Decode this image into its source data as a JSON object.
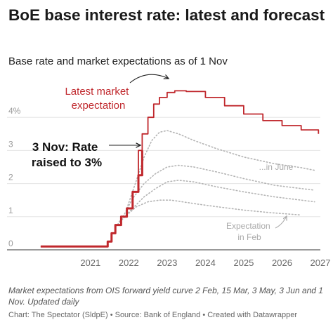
{
  "chart_data": {
    "type": "line",
    "title": "BoE base interest rate: latest and forecast",
    "subtitle": "Base rate and market expectations as of 1 Nov",
    "xlim": [
      2020.0,
      2027.5
    ],
    "ylim": [
      0,
      5
    ],
    "x_ticks": [
      "2021",
      "2022",
      "2023",
      "2024",
      "2025",
      "2026",
      "2027"
    ],
    "y_ticks": [
      "0",
      "1",
      "2",
      "3",
      "4%"
    ],
    "grid": "horizontal",
    "series": [
      {
        "name": "Latest market expectation",
        "color": "#c0282d",
        "x": [
          2020.2,
          2021.95,
          2022.05,
          2022.15,
          2022.3,
          2022.45,
          2022.6,
          2022.75,
          2022.85,
          2023.0,
          2023.15,
          2023.3,
          2023.5,
          2023.7,
          2024.0,
          2024.5,
          2025.0,
          2025.5,
          2026.0,
          2026.5,
          2027.0,
          2027.45
        ],
        "y": [
          0.1,
          0.25,
          0.5,
          0.75,
          1.0,
          1.25,
          1.75,
          3.0,
          3.5,
          4.0,
          4.4,
          4.6,
          4.75,
          4.8,
          4.78,
          4.6,
          4.35,
          4.1,
          3.9,
          3.75,
          3.62,
          3.5
        ]
      },
      {
        "name": "Base rate",
        "color": "#c0282d",
        "x": [
          2020.2,
          2021.95,
          2022.05,
          2022.15,
          2022.3,
          2022.45,
          2022.6,
          2022.75,
          2022.85
        ],
        "y": [
          0.1,
          0.25,
          0.5,
          0.75,
          1.0,
          1.25,
          1.75,
          2.25,
          3.0
        ]
      },
      {
        "name": "...in June",
        "color": "#b4b4b4",
        "x": [
          2022.45,
          2022.7,
          2022.9,
          2023.1,
          2023.3,
          2023.5,
          2023.8,
          2024.2,
          2024.8,
          2025.5,
          2026.3,
          2027.0,
          2027.35
        ],
        "y": [
          1.25,
          2.1,
          2.8,
          3.3,
          3.55,
          3.6,
          3.5,
          3.3,
          3.05,
          2.8,
          2.6,
          2.48,
          2.4
        ]
      },
      {
        "name": "",
        "color": "#b4b4b4",
        "x": [
          2022.35,
          2022.6,
          2022.9,
          2023.2,
          2023.5,
          2023.8,
          2024.2,
          2024.8,
          2025.5,
          2026.3,
          2027.0,
          2027.35
        ],
        "y": [
          1.0,
          1.55,
          2.0,
          2.3,
          2.5,
          2.55,
          2.5,
          2.35,
          2.15,
          1.95,
          1.85,
          1.8
        ]
      },
      {
        "name": "",
        "color": "#b4b4b4",
        "x": [
          2022.25,
          2022.6,
          2022.9,
          2023.2,
          2023.5,
          2023.8,
          2024.2,
          2024.8,
          2025.5,
          2026.3,
          2027.0,
          2027.35
        ],
        "y": [
          0.85,
          1.25,
          1.6,
          1.85,
          2.05,
          2.1,
          2.05,
          1.9,
          1.75,
          1.6,
          1.5,
          1.45
        ]
      },
      {
        "name": "Expectation in Feb",
        "color": "#b4b4b4",
        "x": [
          2022.15,
          2022.4,
          2022.7,
          2023.0,
          2023.3,
          2023.6,
          2023.9,
          2024.3,
          2024.8,
          2025.5,
          2026.2,
          2027.0
        ],
        "y": [
          0.7,
          1.0,
          1.3,
          1.45,
          1.5,
          1.5,
          1.45,
          1.38,
          1.3,
          1.2,
          1.12,
          1.05
        ]
      }
    ],
    "annotations": {
      "latest": "Latest market expectation",
      "rate_raise": "3 Nov: Rate raised to 3%",
      "june": "...in June",
      "feb": "Expectation in Feb"
    }
  },
  "notes": "Market expectations from OIS forward yield curve 2 Feb, 15 Mar, 3 May, 3 Jun and 1 Nov. Updated daily",
  "credit": "Chart: The Spectator (SldpE) • Source: Bank of England • Created with Datawrapper"
}
